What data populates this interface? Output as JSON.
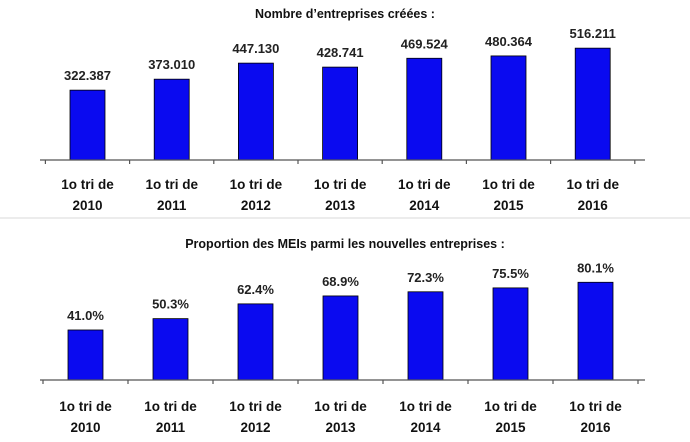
{
  "chart_data": [
    {
      "type": "bar",
      "title": "Nombre d’entreprises créées :",
      "categories": [
        "1o tri de 2010",
        "1o tri de 2011",
        "1o tri de 2012",
        "1o tri de 2013",
        "1o tri de 2014",
        "1o tri de 2015",
        "1o tri de 2016"
      ],
      "category_lines": [
        [
          "1o tri de",
          "2010"
        ],
        [
          "1o tri de",
          "2011"
        ],
        [
          "1o tri de",
          "2012"
        ],
        [
          "1o tri de",
          "2013"
        ],
        [
          "1o tri de",
          "2014"
        ],
        [
          "1o tri de",
          "2015"
        ],
        [
          "1o tri de",
          "2016"
        ]
      ],
      "values": [
        322387,
        373010,
        447130,
        428741,
        469524,
        480364,
        516211
      ],
      "value_labels": [
        "322.387",
        "373.010",
        "447.130",
        "428.741",
        "469.524",
        "480.364",
        "516.211"
      ],
      "ylim": [
        0,
        600000
      ],
      "bar_color": "#0a0af0",
      "xlabel": "",
      "ylabel": ""
    },
    {
      "type": "bar",
      "title": "Proportion des MEIs parmi les nouvelles entreprises :",
      "categories": [
        "1o tri de 2010",
        "1o tri de 2011",
        "1o tri de 2012",
        "1o tri de 2013",
        "1o tri de 2014",
        "1o tri de 2015",
        "1o tri de 2016"
      ],
      "category_lines": [
        [
          "1o tri de",
          "2010"
        ],
        [
          "1o tri de",
          "2011"
        ],
        [
          "1o tri de",
          "2012"
        ],
        [
          "1o tri de",
          "2013"
        ],
        [
          "1o tri de",
          "2014"
        ],
        [
          "1o tri de",
          "2015"
        ],
        [
          "1o tri de",
          "2016"
        ]
      ],
      "values": [
        41.0,
        50.3,
        62.4,
        68.9,
        72.3,
        75.5,
        80.1
      ],
      "value_labels": [
        "41.0%",
        "50.3%",
        "62.4%",
        "68.9%",
        "72.3%",
        "75.5%",
        "80.1%"
      ],
      "ylim": [
        0,
        100
      ],
      "bar_color": "#0a0af0",
      "xlabel": "",
      "ylabel": ""
    }
  ]
}
